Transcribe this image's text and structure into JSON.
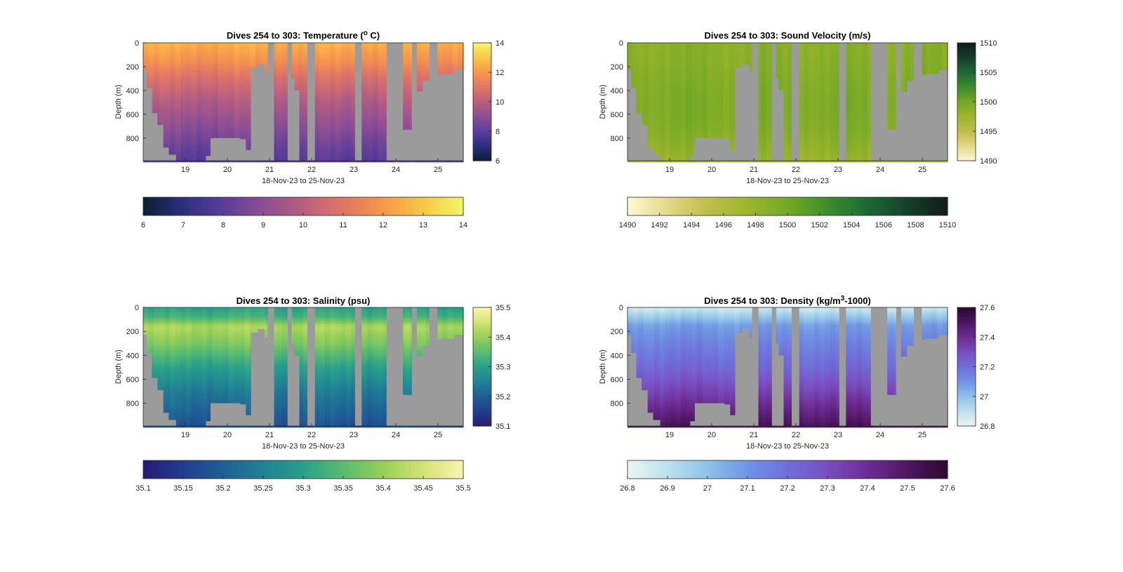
{
  "chart_data": [
    {
      "type": "heatmap",
      "title": "Dives 254 to 303: Temperature (° C)",
      "title_parts": [
        "Dives 254 to 303: Temperature (",
        "o",
        " C)"
      ],
      "xlabel": "18-Nov-23 to 25-Nov-23",
      "ylabel": "Depth (m)",
      "xlim": [
        18,
        25.6
      ],
      "ylim": [
        0,
        990
      ],
      "y_reversed": true,
      "x_ticks": [
        19,
        20,
        21,
        22,
        23,
        24,
        25
      ],
      "y_ticks": [
        0,
        200,
        400,
        600,
        800
      ],
      "colorbar_right": {
        "range": [
          6,
          14
        ],
        "ticks": [
          6,
          8,
          10,
          12,
          14
        ]
      },
      "colorbar_below": {
        "range": [
          6,
          14
        ],
        "ticks": [
          6,
          7,
          8,
          9,
          10,
          11,
          12,
          13,
          14
        ]
      },
      "colormap": [
        "#0b1f33",
        "#2c2f7e",
        "#5b3d9a",
        "#8c4e94",
        "#b85f7f",
        "#e07564",
        "#f7974a",
        "#f9c647",
        "#f2f56a"
      ],
      "profile": {
        "depth": [
          0,
          150,
          300,
          500,
          700,
          900,
          990
        ],
        "value": [
          12.6,
          11.8,
          10.8,
          9.8,
          9.0,
          8.2,
          7.9
        ]
      }
    },
    {
      "type": "heatmap",
      "title": "Dives 254 to 303: Sound Velocity (m/s)",
      "title_parts": [
        "Dives 254 to 303: Sound Velocity (m/s)",
        "",
        ""
      ],
      "xlabel": "18-Nov-23 to 25-Nov-23",
      "ylabel": "Depth (m)",
      "xlim": [
        18,
        25.6
      ],
      "ylim": [
        0,
        990
      ],
      "y_reversed": true,
      "x_ticks": [
        19,
        20,
        21,
        22,
        23,
        24,
        25
      ],
      "y_ticks": [
        0,
        200,
        400,
        600,
        800
      ],
      "colorbar_right": {
        "range": [
          1490,
          1510
        ],
        "ticks": [
          1490,
          1495,
          1500,
          1505,
          1510
        ]
      },
      "colorbar_below": {
        "range": [
          1490,
          1510
        ],
        "ticks": [
          1490,
          1492,
          1494,
          1496,
          1498,
          1500,
          1502,
          1504,
          1506,
          1508,
          1510
        ]
      },
      "colormap": [
        "#fdf8d4",
        "#e3d98b",
        "#c0bd4a",
        "#9db52c",
        "#74a925",
        "#3e8d2c",
        "#1c6a35",
        "#163f2b",
        "#111d15"
      ],
      "profile": {
        "depth": [
          0,
          150,
          300,
          500,
          700,
          900,
          990
        ],
        "value": [
          1498.6,
          1498.8,
          1499.2,
          1499.6,
          1499.3,
          1498.3,
          1497.6
        ]
      }
    },
    {
      "type": "heatmap",
      "title": "Dives 254 to 303: Salinity (psu)",
      "title_parts": [
        "Dives 254 to 303: Salinity (psu)",
        "",
        ""
      ],
      "xlabel": "18-Nov-23 to 25-Nov-23",
      "ylabel": "Depth (m)",
      "xlim": [
        18,
        25.6
      ],
      "ylim": [
        0,
        990
      ],
      "y_reversed": true,
      "x_ticks": [
        19,
        20,
        21,
        22,
        23,
        24,
        25
      ],
      "y_ticks": [
        0,
        200,
        400,
        600,
        800
      ],
      "colorbar_right": {
        "range": [
          35.1,
          35.5
        ],
        "ticks": [
          35.1,
          35.2,
          35.3,
          35.4,
          35.5
        ]
      },
      "colorbar_below": {
        "range": [
          35.1,
          35.5
        ],
        "ticks": [
          35.1,
          35.15,
          35.2,
          35.25,
          35.3,
          35.35,
          35.4,
          35.45,
          35.5
        ]
      },
      "colormap": [
        "#2a1a75",
        "#203d8f",
        "#1f5f96",
        "#218195",
        "#2aa08a",
        "#59bb6f",
        "#97cf58",
        "#d3e275",
        "#f9f4b0"
      ],
      "profile": {
        "depth": [
          0,
          80,
          160,
          300,
          500,
          700,
          900,
          990
        ],
        "value": [
          35.3,
          35.33,
          35.42,
          35.38,
          35.3,
          35.24,
          35.2,
          35.18
        ]
      }
    },
    {
      "type": "heatmap",
      "title": "Dives 254 to 303: Density (kg/m³-1000)",
      "title_parts": [
        "Dives 254 to 303: Density (kg/m",
        "3",
        "-1000)"
      ],
      "xlabel": "18-Nov-23 to 25-Nov-23",
      "ylabel": "Depth (m)",
      "xlim": [
        18,
        25.6
      ],
      "ylim": [
        0,
        990
      ],
      "y_reversed": true,
      "x_ticks": [
        19,
        20,
        21,
        22,
        23,
        24,
        25
      ],
      "y_ticks": [
        0,
        200,
        400,
        600,
        800
      ],
      "colorbar_right": {
        "range": [
          26.8,
          27.6
        ],
        "ticks": [
          26.8,
          27,
          27.2,
          27.4,
          27.6
        ]
      },
      "colorbar_below": {
        "range": [
          26.8,
          27.6
        ],
        "ticks": [
          26.8,
          26.9,
          27,
          27.1,
          27.2,
          27.3,
          27.4,
          27.5,
          27.6
        ]
      },
      "colormap": [
        "#eaf4f4",
        "#bfe0ec",
        "#8fc1e8",
        "#6f94e3",
        "#6f6fd9",
        "#7a4ec0",
        "#6d2c94",
        "#4f1763",
        "#2b0a2f"
      ],
      "profile": {
        "depth": [
          0,
          60,
          150,
          300,
          500,
          700,
          900,
          990
        ],
        "value": [
          26.86,
          26.95,
          27.08,
          27.15,
          27.22,
          27.33,
          27.46,
          27.52
        ]
      }
    }
  ]
}
